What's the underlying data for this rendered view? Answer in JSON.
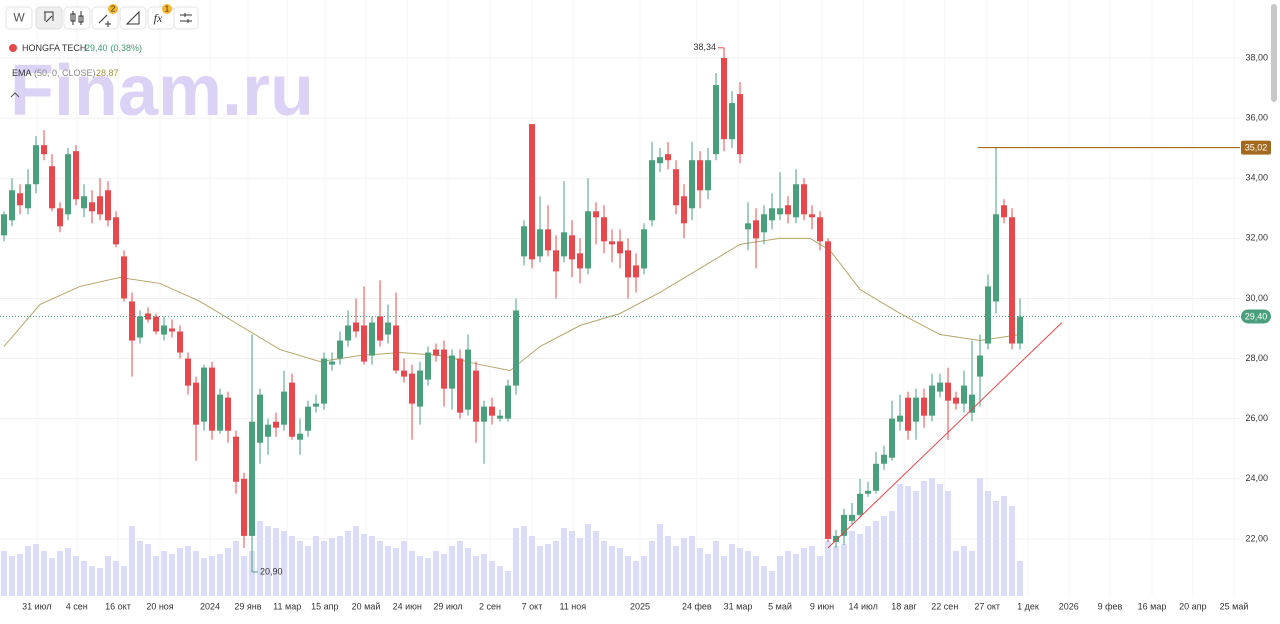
{
  "toolbar": {
    "interval": "W",
    "badges": [
      "2",
      "1"
    ]
  },
  "watermark": "Finam.ru",
  "legend": {
    "symbol": "HONGFA TECH",
    "price": "29,40",
    "change": "(0,38%)",
    "ema_name": "EMA",
    "ema_params": "(50, 0, CLOSE)",
    "ema_value": "28,87"
  },
  "chart_data": {
    "type": "candlestick",
    "up_color": "#4a9f7c",
    "down_color": "#e5484d",
    "volume_color": "#dadcf8",
    "ema_color": "#b5a46a",
    "ylim": [
      20.1,
      39.93
    ],
    "yticks": [
      {
        "value": 22,
        "label": "22,00"
      },
      {
        "value": 24,
        "label": "24,00"
      },
      {
        "value": 26,
        "label": "26,00"
      },
      {
        "value": 28,
        "label": "28,00"
      },
      {
        "value": 30,
        "label": "30,00"
      },
      {
        "value": 32,
        "label": "32,00"
      },
      {
        "value": 34,
        "label": "34,00"
      },
      {
        "value": 36,
        "label": "36,00"
      },
      {
        "value": 38,
        "label": "38,00"
      }
    ],
    "xlim": [
      -0.5,
      154.5
    ],
    "xticks": [
      {
        "value": 4.1,
        "label": "31 июл"
      },
      {
        "value": 9.1,
        "label": "4 сен"
      },
      {
        "value": 14.25,
        "label": "16 окт"
      },
      {
        "value": 19.5,
        "label": "20 ноя"
      },
      {
        "value": 25.75,
        "label": "2024"
      },
      {
        "value": 30.5,
        "label": "29 янв"
      },
      {
        "value": 35.4,
        "label": "11 мар"
      },
      {
        "value": 40.1,
        "label": "15 апр"
      },
      {
        "value": 45.25,
        "label": "20 май"
      },
      {
        "value": 50.4,
        "label": "24 июн"
      },
      {
        "value": 55.5,
        "label": "29 июл"
      },
      {
        "value": 60.75,
        "label": "2 сен"
      },
      {
        "value": 66,
        "label": "7 окт"
      },
      {
        "value": 71.1,
        "label": "11 ноя"
      },
      {
        "value": 79.5,
        "label": "2025"
      },
      {
        "value": 86.6,
        "label": "24 фев"
      },
      {
        "value": 91.75,
        "label": "31 мар"
      },
      {
        "value": 97,
        "label": "5 май"
      },
      {
        "value": 102.25,
        "label": "9 июн"
      },
      {
        "value": 107.4,
        "label": "14 июл"
      },
      {
        "value": 112.5,
        "label": "18 авг"
      },
      {
        "value": 117.6,
        "label": "22 сен"
      },
      {
        "value": 122.9,
        "label": "27 окт"
      },
      {
        "value": 128,
        "label": "1 дек"
      },
      {
        "value": 133.1,
        "label": "2026"
      },
      {
        "value": 138.25,
        "label": "9 фев"
      },
      {
        "value": 143.5,
        "label": "16 мар"
      },
      {
        "value": 148.6,
        "label": "20 апр"
      },
      {
        "value": 153.75,
        "label": "25 май"
      }
    ],
    "grid": true,
    "ohlc": [
      [
        32.1,
        32.9,
        31.9,
        32.8
      ],
      [
        32.6,
        34.0,
        32.4,
        33.6
      ],
      [
        33.5,
        33.8,
        32.8,
        33.1
      ],
      [
        33.0,
        34.3,
        32.8,
        33.8
      ],
      [
        33.8,
        35.4,
        33.5,
        35.1
      ],
      [
        35.1,
        35.6,
        34.6,
        34.8
      ],
      [
        34.4,
        34.8,
        32.9,
        33.0
      ],
      [
        33.0,
        33.2,
        32.2,
        32.4
      ],
      [
        32.8,
        35.0,
        32.6,
        34.8
      ],
      [
        34.9,
        35.1,
        33.1,
        33.3
      ],
      [
        33.0,
        33.8,
        32.7,
        33.4
      ],
      [
        33.2,
        33.6,
        32.5,
        32.9
      ],
      [
        33.4,
        34.0,
        32.6,
        32.8
      ],
      [
        33.6,
        33.9,
        32.4,
        32.6
      ],
      [
        32.7,
        32.9,
        31.7,
        31.8
      ],
      [
        31.4,
        31.6,
        29.9,
        30.0
      ],
      [
        29.9,
        30.2,
        27.4,
        28.6
      ],
      [
        28.7,
        29.6,
        28.5,
        29.4
      ],
      [
        29.5,
        29.7,
        29.2,
        29.3
      ],
      [
        29.4,
        29.5,
        28.8,
        28.9
      ],
      [
        28.8,
        29.4,
        28.6,
        29.1
      ],
      [
        29.0,
        29.3,
        28.7,
        28.9
      ],
      [
        28.9,
        29.1,
        28.0,
        28.2
      ],
      [
        28.0,
        28.2,
        26.8,
        27.1
      ],
      [
        27.2,
        27.4,
        24.6,
        25.8
      ],
      [
        25.9,
        27.8,
        25.6,
        27.7
      ],
      [
        27.7,
        27.9,
        25.3,
        25.6
      ],
      [
        25.6,
        27.0,
        25.5,
        26.8
      ],
      [
        26.7,
        26.9,
        25.2,
        25.6
      ],
      [
        25.4,
        25.6,
        23.5,
        23.9
      ],
      [
        24.0,
        24.2,
        21.7,
        22.1
      ],
      [
        22.1,
        28.8,
        20.9,
        25.9
      ],
      [
        25.2,
        27.0,
        24.5,
        26.8
      ],
      [
        25.4,
        26.0,
        24.8,
        25.8
      ],
      [
        25.9,
        26.2,
        25.4,
        25.7
      ],
      [
        25.8,
        27.6,
        25.6,
        26.9
      ],
      [
        27.2,
        27.5,
        25.3,
        25.4
      ],
      [
        25.3,
        26.0,
        24.8,
        25.5
      ],
      [
        25.6,
        26.6,
        25.4,
        26.4
      ],
      [
        26.4,
        26.8,
        26.2,
        26.5
      ],
      [
        26.5,
        28.2,
        26.3,
        28.0
      ],
      [
        27.8,
        28.2,
        27.6,
        27.9
      ],
      [
        28.0,
        28.9,
        27.8,
        28.6
      ],
      [
        28.6,
        29.6,
        28.4,
        29.1
      ],
      [
        29.2,
        30.0,
        28.7,
        28.9
      ],
      [
        29.1,
        30.4,
        27.8,
        27.9
      ],
      [
        28.1,
        29.4,
        27.8,
        29.2
      ],
      [
        29.4,
        30.6,
        28.4,
        28.6
      ],
      [
        28.8,
        29.8,
        28.5,
        29.2
      ],
      [
        29.1,
        30.2,
        27.5,
        27.6
      ],
      [
        27.6,
        28.0,
        27.2,
        27.4
      ],
      [
        27.5,
        27.8,
        25.3,
        26.5
      ],
      [
        26.4,
        27.9,
        25.8,
        27.6
      ],
      [
        27.3,
        28.4,
        27.1,
        28.2
      ],
      [
        28.3,
        28.5,
        27.9,
        28.1
      ],
      [
        28.3,
        28.6,
        26.4,
        27.0
      ],
      [
        27.0,
        28.3,
        26.3,
        28.1
      ],
      [
        28.0,
        28.3,
        26.0,
        26.2
      ],
      [
        26.3,
        28.8,
        26.1,
        28.3
      ],
      [
        27.6,
        27.9,
        25.2,
        25.9
      ],
      [
        25.9,
        26.6,
        24.5,
        26.4
      ],
      [
        26.4,
        26.7,
        25.8,
        26.1
      ],
      [
        26.0,
        26.3,
        25.9,
        26.1
      ],
      [
        26.0,
        27.3,
        25.9,
        27.1
      ],
      [
        27.1,
        30.0,
        26.8,
        29.6
      ],
      [
        31.4,
        32.6,
        31.1,
        32.4
      ],
      [
        35.8,
        35.8,
        31.0,
        31.3
      ],
      [
        31.4,
        33.4,
        31.2,
        32.3
      ],
      [
        32.3,
        33.1,
        31.4,
        31.6
      ],
      [
        31.6,
        32.1,
        30.0,
        30.9
      ],
      [
        31.4,
        33.9,
        31.2,
        32.2
      ],
      [
        32.1,
        32.6,
        30.7,
        31.3
      ],
      [
        31.5,
        32.0,
        30.5,
        31.0
      ],
      [
        31.0,
        34.0,
        30.8,
        32.9
      ],
      [
        32.9,
        33.2,
        31.8,
        32.7
      ],
      [
        32.7,
        33.1,
        31.5,
        31.9
      ],
      [
        31.9,
        32.3,
        31.2,
        31.8
      ],
      [
        31.9,
        32.3,
        31.0,
        31.5
      ],
      [
        31.6,
        32.0,
        30.0,
        30.7
      ],
      [
        31.1,
        31.5,
        30.2,
        30.7
      ],
      [
        31.0,
        32.5,
        30.8,
        32.3
      ],
      [
        32.6,
        35.2,
        32.4,
        34.6
      ],
      [
        34.5,
        35.0,
        34.2,
        34.7
      ],
      [
        34.8,
        35.2,
        34.3,
        34.6
      ],
      [
        34.3,
        34.6,
        32.8,
        33.1
      ],
      [
        33.4,
        33.8,
        32.0,
        32.5
      ],
      [
        33.0,
        35.2,
        32.6,
        34.6
      ],
      [
        34.6,
        34.9,
        33.0,
        33.6
      ],
      [
        33.6,
        35.0,
        33.3,
        34.6
      ],
      [
        34.8,
        37.5,
        34.6,
        37.1
      ],
      [
        38.0,
        38.34,
        34.9,
        35.3
      ],
      [
        35.3,
        36.9,
        35.0,
        36.5
      ],
      [
        36.8,
        37.2,
        34.5,
        34.8
      ],
      [
        32.3,
        33.2,
        31.6,
        32.5
      ],
      [
        32.6,
        33.0,
        31.0,
        32.0
      ],
      [
        32.2,
        33.1,
        31.8,
        32.8
      ],
      [
        32.6,
        33.5,
        32.3,
        33.0
      ],
      [
        32.8,
        34.2,
        32.6,
        33.0
      ],
      [
        33.1,
        33.4,
        32.5,
        32.8
      ],
      [
        32.7,
        34.3,
        32.5,
        33.8
      ],
      [
        33.8,
        34.0,
        32.6,
        32.8
      ],
      [
        32.8,
        33.1,
        32.3,
        32.7
      ],
      [
        32.7,
        32.9,
        31.6,
        31.9
      ],
      [
        31.9,
        32.0,
        21.9,
        22.0
      ],
      [
        21.9,
        22.3,
        21.7,
        22.1
      ],
      [
        22.1,
        23.0,
        21.8,
        22.8
      ],
      [
        22.6,
        23.2,
        22.5,
        22.8
      ],
      [
        22.8,
        24.0,
        22.7,
        23.5
      ],
      [
        23.5,
        23.9,
        23.4,
        23.6
      ],
      [
        23.6,
        24.9,
        23.5,
        24.5
      ],
      [
        24.5,
        25.1,
        24.3,
        24.8
      ],
      [
        24.7,
        26.6,
        24.6,
        26.0
      ],
      [
        25.9,
        26.8,
        25.6,
        26.1
      ],
      [
        26.7,
        26.9,
        25.3,
        25.6
      ],
      [
        25.9,
        27.0,
        25.3,
        26.7
      ],
      [
        26.7,
        27.0,
        25.7,
        26.1
      ],
      [
        26.1,
        27.5,
        25.9,
        27.1
      ],
      [
        26.9,
        27.5,
        26.7,
        27.2
      ],
      [
        27.2,
        27.7,
        25.3,
        26.6
      ],
      [
        26.7,
        26.9,
        26.3,
        26.5
      ],
      [
        26.5,
        27.6,
        26.2,
        27.1
      ],
      [
        26.2,
        28.6,
        25.9,
        26.8
      ],
      [
        27.4,
        28.8,
        26.4,
        28.1
      ],
      [
        28.5,
        30.8,
        28.3,
        30.4
      ],
      [
        29.9,
        35.02,
        29.5,
        32.8
      ],
      [
        33.1,
        33.3,
        32.5,
        32.7
      ],
      [
        32.7,
        33.0,
        28.3,
        28.5
      ],
      [
        28.5,
        30.0,
        28.3,
        29.4
      ]
    ],
    "volumes": [
      45,
      40,
      42,
      50,
      52,
      45,
      38,
      45,
      48,
      40,
      35,
      30,
      28,
      40,
      35,
      30,
      70,
      55,
      52,
      40,
      45,
      42,
      48,
      50,
      45,
      38,
      40,
      42,
      48,
      55,
      40,
      45,
      75,
      70,
      68,
      65,
      60,
      55,
      50,
      60,
      55,
      58,
      60,
      65,
      70,
      62,
      60,
      55,
      50,
      48,
      55,
      45,
      40,
      38,
      45,
      42,
      50,
      55,
      48,
      40,
      42,
      35,
      30,
      25,
      68,
      70,
      60,
      50,
      52,
      55,
      68,
      65,
      58,
      72,
      65,
      55,
      50,
      48,
      40,
      35,
      40,
      55,
      72,
      60,
      50,
      58,
      60,
      48,
      42,
      55,
      40,
      52,
      48,
      45,
      40,
      30,
      25,
      40,
      45,
      42,
      48,
      50,
      40,
      55,
      50,
      52,
      65,
      62,
      70,
      75,
      80,
      85,
      112,
      110,
      105,
      115,
      118,
      112,
      105,
      45,
      50,
      45,
      118,
      105,
      95,
      100,
      90,
      35
    ],
    "ema": {
      "x": [
        0,
        4.5,
        9.5,
        14.5,
        19.5,
        24.5,
        29.5,
        34.5,
        39.5,
        44.5,
        49.5,
        54.5,
        59.5,
        63.25,
        67,
        72,
        77,
        82,
        87,
        92,
        97,
        100.75,
        103.25,
        107,
        112,
        117,
        122,
        127
      ],
      "values": [
        28.4,
        29.8,
        30.4,
        30.7,
        30.5,
        29.9,
        29.1,
        28.3,
        27.9,
        28.1,
        28.2,
        28.1,
        27.8,
        27.6,
        28.4,
        29.1,
        29.5,
        30.2,
        31.0,
        31.8,
        32.0,
        32.0,
        31.6,
        30.3,
        29.5,
        28.8,
        28.6,
        28.8
      ]
    },
    "trendline": {
      "x": [
        103,
        132.25
      ],
      "values": [
        21.7,
        29.2
      ]
    },
    "high_label": {
      "x": 90,
      "value": 38.34,
      "label": "38,34"
    },
    "low_label": {
      "x": 31,
      "value": 20.9,
      "label": "20,90"
    },
    "last_price": {
      "value": 29.4,
      "label": "29,40"
    },
    "level": {
      "x": 121.75,
      "value": 35.02,
      "label": "35,02",
      "color": "#a36a1f"
    }
  }
}
